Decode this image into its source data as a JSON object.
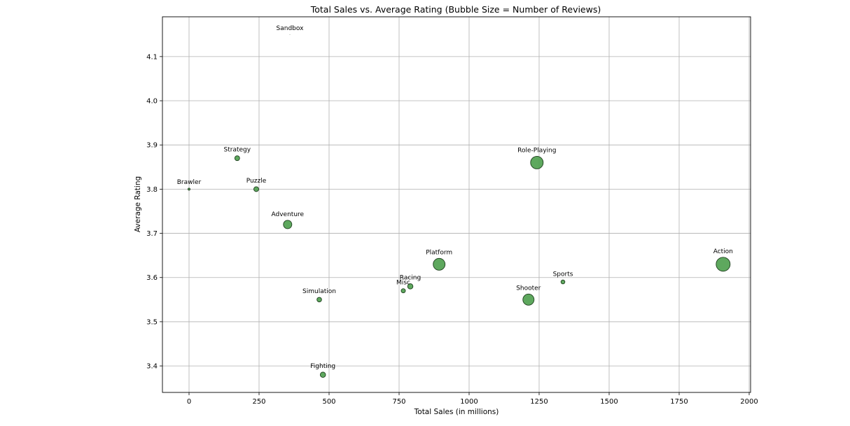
{
  "chart_data": {
    "type": "scatter",
    "title": "Total Sales vs. Average Rating (Bubble Size = Number of Reviews)",
    "xlabel": "Total Sales (in millions)",
    "ylabel": "Average Rating",
    "xlim": [
      -95,
      2005
    ],
    "ylim": [
      3.34,
      4.19
    ],
    "xticks": [
      0,
      250,
      500,
      750,
      1000,
      1250,
      1500,
      1750,
      2000
    ],
    "xtick_labels": [
      "0",
      "250",
      "500",
      "750",
      "1000",
      "1250",
      "1500",
      "1750",
      "2000"
    ],
    "yticks": [
      3.4,
      3.5,
      3.6,
      3.7,
      3.8,
      3.9,
      4.0,
      4.1
    ],
    "ytick_labels": [
      "3.4",
      "3.5",
      "3.6",
      "3.7",
      "3.8",
      "3.9",
      "4.0",
      "4.1"
    ],
    "grid": true,
    "marker_color": "#4c9f4c",
    "marker_edge": "#1f3f1f",
    "points": [
      {
        "label": "Sandbox",
        "x": 360,
        "y": 4.15,
        "size": 0.2
      },
      {
        "label": "Strategy",
        "x": 172,
        "y": 3.87,
        "size": 3.5
      },
      {
        "label": "Brawler",
        "x": 0,
        "y": 3.8,
        "size": 1.5
      },
      {
        "label": "Puzzle",
        "x": 240,
        "y": 3.8,
        "size": 3.5
      },
      {
        "label": "Adventure",
        "x": 352,
        "y": 3.72,
        "size": 6
      },
      {
        "label": "Role-Playing",
        "x": 1242,
        "y": 3.86,
        "size": 9
      },
      {
        "label": "Platform",
        "x": 893,
        "y": 3.63,
        "size": 8.5
      },
      {
        "label": "Action",
        "x": 1907,
        "y": 3.63,
        "size": 10
      },
      {
        "label": "Sports",
        "x": 1335,
        "y": 3.59,
        "size": 2.8
      },
      {
        "label": "Racing",
        "x": 790,
        "y": 3.58,
        "size": 3.8
      },
      {
        "label": "Misc",
        "x": 765,
        "y": 3.57,
        "size": 3
      },
      {
        "label": "Simulation",
        "x": 465,
        "y": 3.55,
        "size": 3.3
      },
      {
        "label": "Shooter",
        "x": 1212,
        "y": 3.55,
        "size": 8
      },
      {
        "label": "Fighting",
        "x": 478,
        "y": 3.38,
        "size": 3.8
      }
    ]
  }
}
